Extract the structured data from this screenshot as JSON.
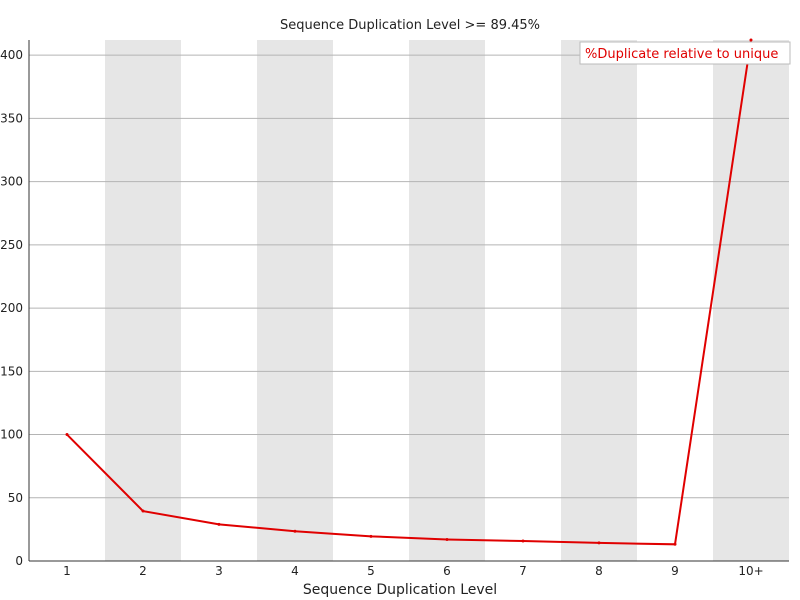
{
  "chart_data": {
    "type": "line",
    "title": "Sequence Duplication Level >= 89.45%",
    "xlabel": "Sequence Duplication Level",
    "ylabel": "",
    "categories": [
      "1",
      "2",
      "3",
      "4",
      "5",
      "6",
      "7",
      "8",
      "9",
      "10+"
    ],
    "series": [
      {
        "name": "%Duplicate relative to unique",
        "color": "#e00000",
        "values": [
          100.0,
          39.5,
          29.0,
          23.5,
          19.5,
          17.0,
          15.8,
          14.3,
          13.2,
          412.0
        ]
      }
    ],
    "ylim": [
      0,
      412
    ],
    "yticks": [
      0,
      50,
      100,
      150,
      200,
      250,
      300,
      350,
      400
    ],
    "grid": true,
    "alternating_bands": true,
    "band_color": "#e6e6e6",
    "legend_position": "top-right"
  }
}
